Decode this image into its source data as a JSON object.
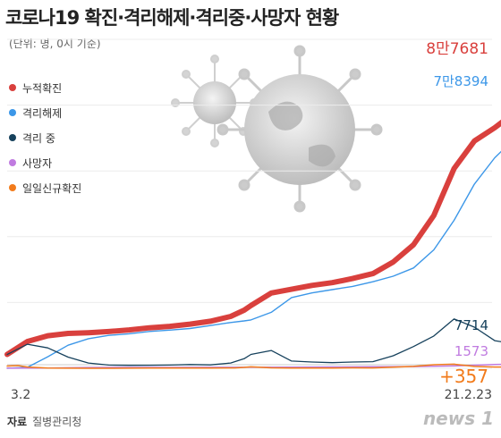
{
  "chart_data": {
    "type": "line",
    "title": "코로나19 확진·격리해제·격리중·사망자 현황",
    "subtitle": "(단위: 명, 0시 기준)",
    "x": [
      "3.2",
      "21.2.23"
    ],
    "xlim": [
      "2020-03-02",
      "2021-02-23"
    ],
    "ylim": [
      0,
      100000
    ],
    "grid": true,
    "legend_position": "top-left",
    "legend": [
      "누적확진",
      "격리해제",
      "격리 중",
      "사망자",
      "일일신규확진"
    ],
    "series": [
      {
        "name": "누적확진",
        "color": "#d9403d",
        "values": [
          [
            0,
            4212
          ],
          [
            15,
            8162
          ],
          [
            30,
            9887
          ],
          [
            45,
            10591
          ],
          [
            60,
            10804
          ],
          [
            75,
            11165
          ],
          [
            90,
            11668
          ],
          [
            105,
            12306
          ],
          [
            120,
            12757
          ],
          [
            135,
            13417
          ],
          [
            150,
            14299
          ],
          [
            165,
            15761
          ],
          [
            175,
            17665
          ],
          [
            180,
            19077
          ],
          [
            195,
            22893
          ],
          [
            210,
            24027
          ],
          [
            225,
            25199
          ],
          [
            240,
            26043
          ],
          [
            255,
            27284
          ],
          [
            270,
            28769
          ],
          [
            285,
            32318
          ],
          [
            300,
            37546
          ],
          [
            315,
            46453
          ],
          [
            330,
            60740
          ],
          [
            345,
            69114
          ],
          [
            360,
            73115
          ],
          [
            375,
            77850
          ],
          [
            393,
            87681
          ]
        ]
      },
      {
        "name": "격리해제",
        "color": "#3c97e8",
        "values": [
          [
            0,
            30
          ],
          [
            15,
            300
          ],
          [
            30,
            3500
          ],
          [
            45,
            7000
          ],
          [
            60,
            9000
          ],
          [
            75,
            10000
          ],
          [
            90,
            10500
          ],
          [
            105,
            11200
          ],
          [
            120,
            11600
          ],
          [
            135,
            12100
          ],
          [
            150,
            13000
          ],
          [
            165,
            13900
          ],
          [
            175,
            14400
          ],
          [
            180,
            14700
          ],
          [
            195,
            17000
          ],
          [
            210,
            21500
          ],
          [
            225,
            22900
          ],
          [
            240,
            23900
          ],
          [
            255,
            24900
          ],
          [
            270,
            26300
          ],
          [
            285,
            28000
          ],
          [
            300,
            30500
          ],
          [
            315,
            36000
          ],
          [
            330,
            45000
          ],
          [
            345,
            56000
          ],
          [
            360,
            64000
          ],
          [
            375,
            70000
          ],
          [
            393,
            78394
          ]
        ]
      },
      {
        "name": "격리 중",
        "color": "#16415c",
        "values": [
          [
            0,
            4180
          ],
          [
            15,
            7300
          ],
          [
            30,
            6200
          ],
          [
            45,
            3400
          ],
          [
            60,
            1600
          ],
          [
            75,
            980
          ],
          [
            90,
            900
          ],
          [
            105,
            930
          ],
          [
            120,
            990
          ],
          [
            135,
            1150
          ],
          [
            150,
            1040
          ],
          [
            165,
            1600
          ],
          [
            175,
            2900
          ],
          [
            180,
            4200
          ],
          [
            195,
            5400
          ],
          [
            210,
            2200
          ],
          [
            225,
            1900
          ],
          [
            240,
            1700
          ],
          [
            255,
            1900
          ],
          [
            270,
            2000
          ],
          [
            285,
            3800
          ],
          [
            300,
            6600
          ],
          [
            315,
            9800
          ],
          [
            330,
            15000
          ],
          [
            345,
            12500
          ],
          [
            360,
            8400
          ],
          [
            375,
            7400
          ],
          [
            393,
            7714
          ]
        ]
      },
      {
        "name": "사망자",
        "color": "#c07be0",
        "values": [
          [
            0,
            22
          ],
          [
            30,
            94
          ],
          [
            60,
            244
          ],
          [
            90,
            269
          ],
          [
            120,
            282
          ],
          [
            150,
            300
          ],
          [
            180,
            309
          ],
          [
            210,
            357
          ],
          [
            240,
            415
          ],
          [
            270,
            464
          ],
          [
            300,
            503
          ],
          [
            330,
            698
          ],
          [
            360,
            1140
          ],
          [
            393,
            1573
          ]
        ]
      },
      {
        "name": "일일신규확진",
        "color": "#f27b1b",
        "values": [
          [
            0,
            686
          ],
          [
            8,
            813
          ],
          [
            15,
            367
          ],
          [
            30,
            76
          ],
          [
            45,
            27
          ],
          [
            60,
            8
          ],
          [
            75,
            13
          ],
          [
            90,
            35
          ],
          [
            105,
            50
          ],
          [
            120,
            47
          ],
          [
            150,
            59
          ],
          [
            168,
            103
          ],
          [
            175,
            279
          ],
          [
            180,
            441
          ],
          [
            195,
            126
          ],
          [
            210,
            61
          ],
          [
            225,
            48
          ],
          [
            240,
            84
          ],
          [
            255,
            125
          ],
          [
            270,
            118
          ],
          [
            285,
            330
          ],
          [
            300,
            583
          ],
          [
            315,
            1078
          ],
          [
            330,
            1241
          ],
          [
            345,
            580
          ],
          [
            360,
            368
          ],
          [
            375,
            364
          ],
          [
            393,
            357
          ]
        ]
      }
    ],
    "end_labels": [
      "8만7681",
      "7만8394",
      "7714",
      "1573",
      "+357"
    ]
  },
  "footer": {
    "source_label": "자료",
    "source_value": "질병관리청",
    "logo": "news 1"
  }
}
